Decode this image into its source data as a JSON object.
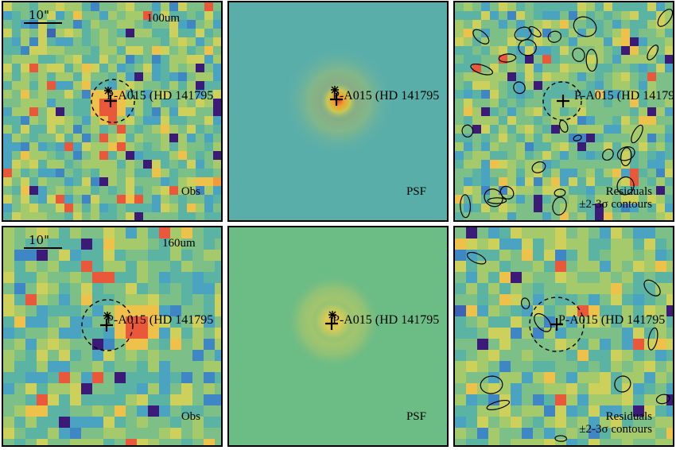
{
  "source_label": "P-A015 (HD 141795",
  "rows": [
    {
      "band": "100um",
      "scale_bar": "10\"",
      "obs_label": "Obs",
      "psf_label": "PSF",
      "residual_label": "Residuals",
      "contour_label": "±2-3σ contours"
    },
    {
      "band": "160um",
      "scale_bar": "10\"",
      "obs_label": "Obs",
      "psf_label": "PSF",
      "residual_label": "Residuals",
      "contour_label": "±2-3σ contours"
    }
  ],
  "colors": {
    "frame": "#000000",
    "psf_100_bg": "#5aaeaa",
    "psf_160_bg": "#6cbc86",
    "peak": "#e8542a",
    "background_mid": "#60b096"
  }
}
